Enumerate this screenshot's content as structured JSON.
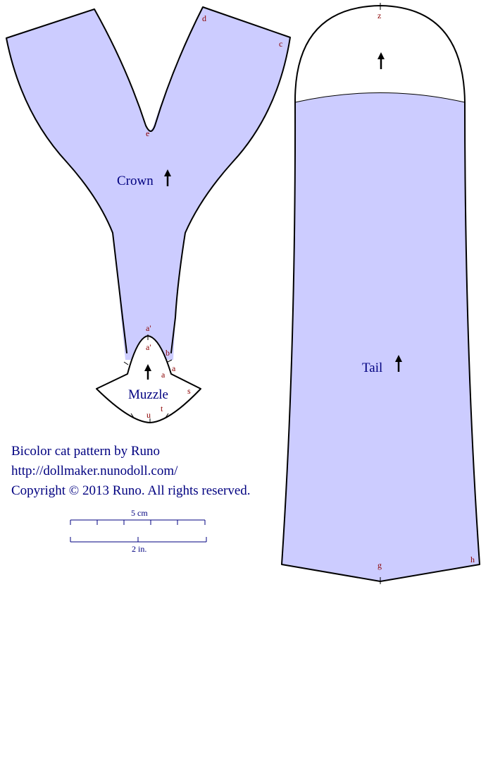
{
  "pieces": {
    "crown": {
      "label": "Crown",
      "marks": {
        "e": "e",
        "d": "d",
        "c": "c"
      }
    },
    "muzzle": {
      "label": "Muzzle",
      "marks": {
        "a_prime_top": "a'",
        "a_prime_inner": "a'",
        "b": "b",
        "a_outer": "a",
        "a_inner": "a",
        "s": "s",
        "u": "u",
        "t": "t"
      }
    },
    "tail": {
      "label": "Tail",
      "marks": {
        "z": "z",
        "g": "g",
        "h": "h"
      }
    }
  },
  "credits": {
    "line1": "Bicolor cat  pattern by Runo",
    "line2": "http://dollmaker.nunodoll.com/",
    "line3": "Copyright © 2013 Runo. All rights reserved."
  },
  "scale": {
    "cm_label": "5 cm",
    "inch_label": "2 in."
  },
  "colors": {
    "piece_fill": "#ccccff",
    "label_text": "#000080",
    "mark_text": "#8b0000"
  }
}
